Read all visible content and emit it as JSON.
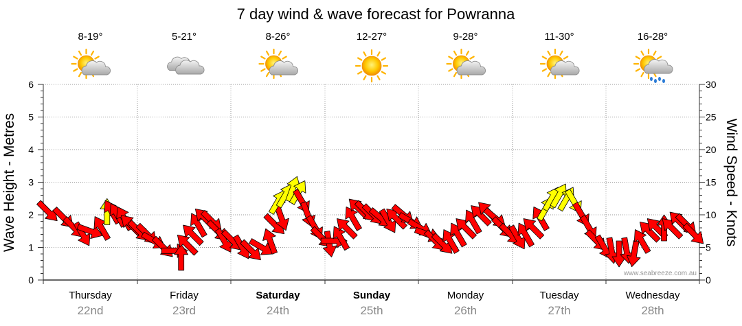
{
  "chart_data": {
    "type": "line",
    "title": "7 day wind & wave forecast for Powranna",
    "ylabel_left": "Wave Height - Metres",
    "ylabel_right": "Wind Speed - Knots",
    "left_ticks": [
      "0",
      "1",
      "2",
      "3",
      "4",
      "5",
      "6"
    ],
    "right_ticks": [
      "0",
      "5",
      "10",
      "15",
      "20",
      "25",
      "30"
    ],
    "ylim_left": [
      0,
      6
    ],
    "ylim_right": [
      0,
      30
    ],
    "credit": "www.seabreeze.com.au",
    "colors": {
      "arrow_strong": "#ff0000",
      "arrow_weak": "#ffff00",
      "stroke": "#000000",
      "grid": "#999999"
    },
    "days": [
      {
        "name": "Thursday",
        "date": "22nd",
        "temp": "8-19°",
        "icon": "partly-cloudy-icon",
        "bold": false
      },
      {
        "name": "Friday",
        "date": "23rd",
        "temp": "5-21°",
        "icon": "cloudy-icon",
        "bold": false
      },
      {
        "name": "Saturday",
        "date": "24th",
        "temp": "8-26°",
        "icon": "partly-cloudy-icon",
        "bold": true
      },
      {
        "name": "Sunday",
        "date": "25th",
        "temp": "12-27°",
        "icon": "sunny-icon",
        "bold": true
      },
      {
        "name": "Monday",
        "date": "26th",
        "temp": "9-28°",
        "icon": "partly-cloudy-icon",
        "bold": false
      },
      {
        "name": "Tuesday",
        "date": "27th",
        "temp": "11-30°",
        "icon": "partly-cloudy-icon",
        "bold": false
      },
      {
        "name": "Wednesday",
        "date": "28th",
        "temp": "16-28°",
        "icon": "showers-icon",
        "bold": false
      }
    ],
    "wind_series": {
      "name": "Wind speed (knots) with direction arrows",
      "points": [
        {
          "t": 0.05,
          "knots": 10.5,
          "dir": 135,
          "level": "strong"
        },
        {
          "t": 0.22,
          "knots": 9.5,
          "dir": 135,
          "level": "strong"
        },
        {
          "t": 0.33,
          "knots": 8,
          "dir": 135,
          "level": "strong"
        },
        {
          "t": 0.42,
          "knots": 7,
          "dir": 150,
          "level": "strong"
        },
        {
          "t": 0.5,
          "knots": 7.5,
          "dir": 110,
          "level": "strong"
        },
        {
          "t": 0.62,
          "knots": 8,
          "dir": 330,
          "level": "strong"
        },
        {
          "t": 0.68,
          "knots": 10.5,
          "dir": 0,
          "level": "weak"
        },
        {
          "t": 0.73,
          "knots": 10.5,
          "dir": 330,
          "level": "strong"
        },
        {
          "t": 0.79,
          "knots": 10,
          "dir": 330,
          "level": "strong"
        },
        {
          "t": 0.86,
          "knots": 9.5,
          "dir": 330,
          "level": "strong"
        },
        {
          "t": 0.93,
          "knots": 8.5,
          "dir": 315,
          "level": "strong"
        },
        {
          "t": 1.02,
          "knots": 7.5,
          "dir": 135,
          "level": "strong"
        },
        {
          "t": 1.11,
          "knots": 7,
          "dir": 135,
          "level": "strong"
        },
        {
          "t": 1.18,
          "knots": 6,
          "dir": 120,
          "level": "strong"
        },
        {
          "t": 1.28,
          "knots": 5,
          "dir": 135,
          "level": "strong"
        },
        {
          "t": 1.4,
          "knots": 4.5,
          "dir": 90,
          "level": "strong"
        },
        {
          "t": 1.47,
          "knots": 3.5,
          "dir": 0,
          "level": "strong"
        },
        {
          "t": 1.53,
          "knots": 5.5,
          "dir": 315,
          "level": "strong"
        },
        {
          "t": 1.59,
          "knots": 7,
          "dir": 315,
          "level": "strong"
        },
        {
          "t": 1.65,
          "knots": 8.5,
          "dir": 330,
          "level": "strong"
        },
        {
          "t": 1.72,
          "knots": 9.5,
          "dir": 315,
          "level": "strong"
        },
        {
          "t": 1.8,
          "knots": 9,
          "dir": 135,
          "level": "strong"
        },
        {
          "t": 1.86,
          "knots": 7.5,
          "dir": 135,
          "level": "strong"
        },
        {
          "t": 1.93,
          "knots": 6,
          "dir": 150,
          "level": "strong"
        },
        {
          "t": 2.02,
          "knots": 6,
          "dir": 135,
          "level": "strong"
        },
        {
          "t": 2.12,
          "knots": 5,
          "dir": 150,
          "level": "strong"
        },
        {
          "t": 2.22,
          "knots": 4.5,
          "dir": 135,
          "level": "strong"
        },
        {
          "t": 2.33,
          "knots": 5,
          "dir": 120,
          "level": "strong"
        },
        {
          "t": 2.42,
          "knots": 6,
          "dir": 340,
          "level": "strong"
        },
        {
          "t": 2.47,
          "knots": 8.5,
          "dir": 135,
          "level": "strong"
        },
        {
          "t": 2.54,
          "knots": 9.5,
          "dir": 160,
          "level": "strong"
        },
        {
          "t": 2.5,
          "knots": 12,
          "dir": 30,
          "level": "weak"
        },
        {
          "t": 2.58,
          "knots": 13,
          "dir": 30,
          "level": "weak"
        },
        {
          "t": 2.66,
          "knots": 14,
          "dir": 20,
          "level": "weak"
        },
        {
          "t": 2.72,
          "knots": 13.5,
          "dir": 30,
          "level": "weak"
        },
        {
          "t": 2.76,
          "knots": 12,
          "dir": 150,
          "level": "strong"
        },
        {
          "t": 2.82,
          "knots": 10,
          "dir": 160,
          "level": "strong"
        },
        {
          "t": 2.9,
          "knots": 8,
          "dir": 150,
          "level": "strong"
        },
        {
          "t": 2.97,
          "knots": 6.5,
          "dir": 135,
          "level": "strong"
        },
        {
          "t": 3.05,
          "knots": 5.5,
          "dir": 170,
          "level": "strong"
        },
        {
          "t": 3.1,
          "knots": 6,
          "dir": 90,
          "level": "strong"
        },
        {
          "t": 3.17,
          "knots": 6.5,
          "dir": 330,
          "level": "strong"
        },
        {
          "t": 3.23,
          "knots": 8,
          "dir": 315,
          "level": "strong"
        },
        {
          "t": 3.3,
          "knots": 9.5,
          "dir": 330,
          "level": "strong"
        },
        {
          "t": 3.36,
          "knots": 11,
          "dir": 315,
          "level": "strong"
        },
        {
          "t": 3.44,
          "knots": 10.5,
          "dir": 135,
          "level": "strong"
        },
        {
          "t": 3.52,
          "knots": 10,
          "dir": 135,
          "level": "strong"
        },
        {
          "t": 3.6,
          "knots": 9.5,
          "dir": 130,
          "level": "strong"
        },
        {
          "t": 3.68,
          "knots": 9,
          "dir": 150,
          "level": "strong"
        },
        {
          "t": 3.76,
          "knots": 9.5,
          "dir": 315,
          "level": "strong"
        },
        {
          "t": 3.84,
          "knots": 10,
          "dir": 130,
          "level": "strong"
        },
        {
          "t": 3.92,
          "knots": 9,
          "dir": 120,
          "level": "strong"
        },
        {
          "t": 4.02,
          "knots": 8,
          "dir": 120,
          "level": "strong"
        },
        {
          "t": 4.1,
          "knots": 7,
          "dir": 110,
          "level": "strong"
        },
        {
          "t": 4.18,
          "knots": 6,
          "dir": 135,
          "level": "strong"
        },
        {
          "t": 4.26,
          "knots": 5.5,
          "dir": 135,
          "level": "strong"
        },
        {
          "t": 4.34,
          "knots": 6,
          "dir": 330,
          "level": "strong"
        },
        {
          "t": 4.42,
          "knots": 7,
          "dir": 330,
          "level": "strong"
        },
        {
          "t": 4.5,
          "knots": 8,
          "dir": 315,
          "level": "strong"
        },
        {
          "t": 4.58,
          "knots": 9,
          "dir": 330,
          "level": "strong"
        },
        {
          "t": 4.66,
          "knots": 10,
          "dir": 315,
          "level": "strong"
        },
        {
          "t": 4.74,
          "knots": 10.5,
          "dir": 315,
          "level": "strong"
        },
        {
          "t": 4.82,
          "knots": 9.5,
          "dir": 130,
          "level": "strong"
        },
        {
          "t": 4.9,
          "knots": 8,
          "dir": 135,
          "level": "strong"
        },
        {
          "t": 4.98,
          "knots": 7,
          "dir": 135,
          "level": "strong"
        },
        {
          "t": 5.06,
          "knots": 6.5,
          "dir": 150,
          "level": "strong"
        },
        {
          "t": 5.14,
          "knots": 7,
          "dir": 330,
          "level": "strong"
        },
        {
          "t": 5.22,
          "knots": 8,
          "dir": 315,
          "level": "strong"
        },
        {
          "t": 5.3,
          "knots": 9.5,
          "dir": 330,
          "level": "strong"
        },
        {
          "t": 5.36,
          "knots": 11,
          "dir": 30,
          "level": "weak"
        },
        {
          "t": 5.42,
          "knots": 12.5,
          "dir": 30,
          "level": "weak"
        },
        {
          "t": 5.5,
          "knots": 13,
          "dir": 30,
          "level": "weak"
        },
        {
          "t": 5.58,
          "knots": 12.5,
          "dir": 30,
          "level": "weak"
        },
        {
          "t": 5.66,
          "knots": 12,
          "dir": 150,
          "level": "weak"
        },
        {
          "t": 5.74,
          "knots": 10,
          "dir": 150,
          "level": "strong"
        },
        {
          "t": 5.82,
          "knots": 8,
          "dir": 150,
          "level": "strong"
        },
        {
          "t": 5.9,
          "knots": 6,
          "dir": 135,
          "level": "strong"
        },
        {
          "t": 5.98,
          "knots": 5,
          "dir": 150,
          "level": "strong"
        },
        {
          "t": 6.06,
          "knots": 4.5,
          "dir": 170,
          "level": "strong"
        },
        {
          "t": 6.14,
          "knots": 4,
          "dir": 180,
          "level": "strong"
        },
        {
          "t": 6.22,
          "knots": 4.5,
          "dir": 170,
          "level": "strong"
        },
        {
          "t": 6.3,
          "knots": 4,
          "dir": 190,
          "level": "strong"
        },
        {
          "t": 6.38,
          "knots": 6,
          "dir": 330,
          "level": "strong"
        },
        {
          "t": 6.46,
          "knots": 7.5,
          "dir": 315,
          "level": "strong"
        },
        {
          "t": 6.54,
          "knots": 8,
          "dir": 315,
          "level": "strong"
        },
        {
          "t": 6.62,
          "knots": 8,
          "dir": 0,
          "level": "strong"
        },
        {
          "t": 6.7,
          "knots": 8,
          "dir": 315,
          "level": "strong"
        },
        {
          "t": 6.78,
          "knots": 9,
          "dir": 315,
          "level": "strong"
        },
        {
          "t": 6.86,
          "knots": 8.5,
          "dir": 135,
          "level": "strong"
        },
        {
          "t": 6.94,
          "knots": 7,
          "dir": 135,
          "level": "strong"
        }
      ]
    }
  }
}
